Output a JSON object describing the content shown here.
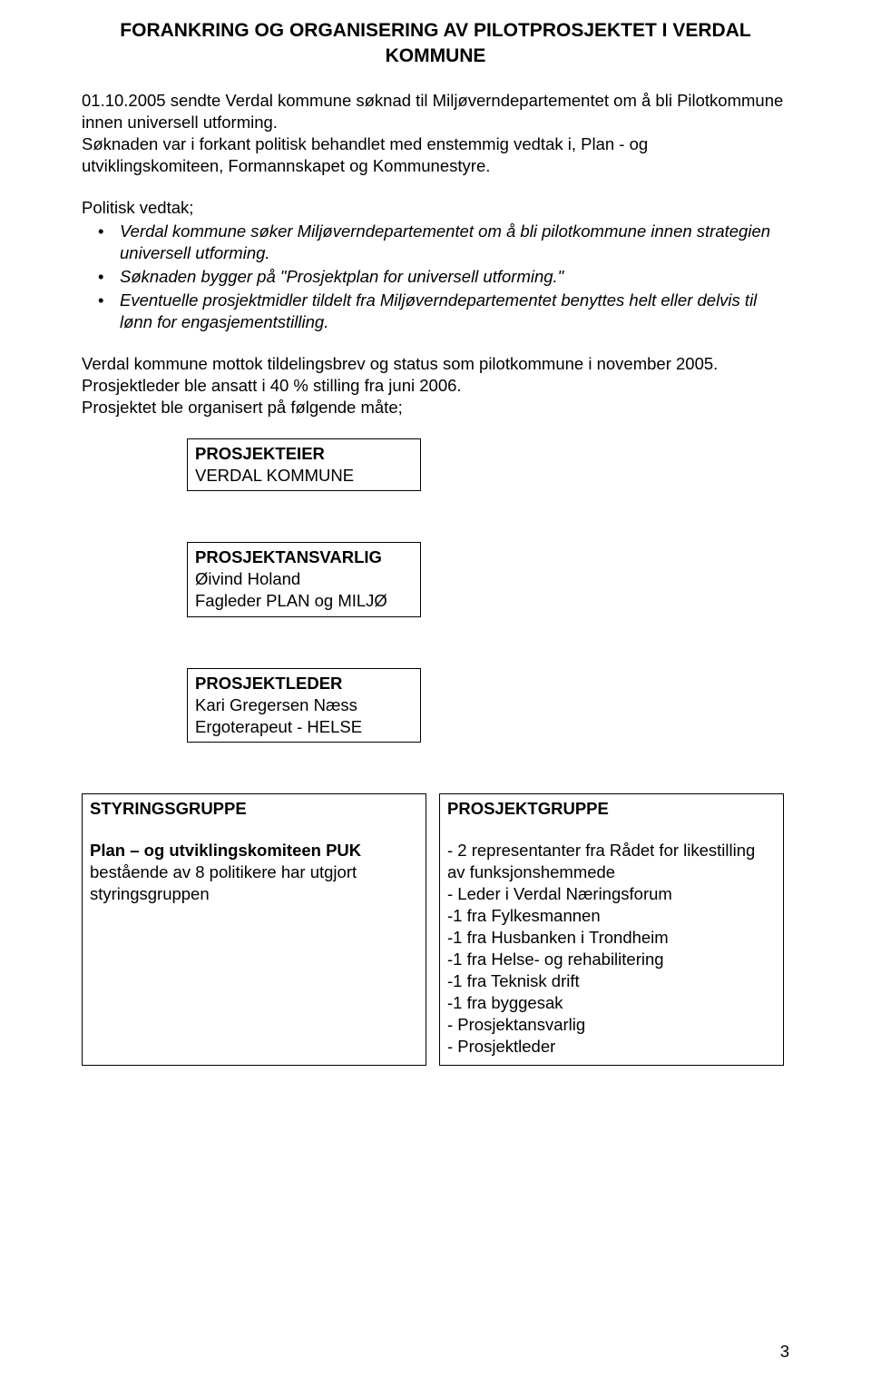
{
  "heading": "FORANKRING OG ORGANISERING AV PILOTPROSJEKTET I VERDAL KOMMUNE",
  "para1": "01.10.2005 sendte Verdal kommune søknad til Miljøverndepartementet om å bli Pilotkommune innen universell utforming.",
  "para2": "Søknaden var i forkant politisk behandlet med enstemmig vedtak i, Plan - og utviklingskomiteen, Formannskapet og Kommunestyre.",
  "vedtak_lead": "Politisk vedtak;",
  "vedtak_items": [
    "Verdal kommune søker Miljøverndepartementet om å bli pilotkommune innen strategien universell utforming.",
    "Søknaden bygger på \"Prosjektplan for universell utforming.\"",
    "Eventuelle prosjektmidler tildelt fra Miljøverndepartementet benyttes helt eller delvis til lønn for engasjementstilling."
  ],
  "para3a": "Verdal kommune mottok tildelingsbrev og status som pilotkommune i november 2005.",
  "para3b": "Prosjektleder ble ansatt i 40 % stilling fra juni 2006.",
  "para3c": "Prosjektet ble organisert på følgende måte;",
  "box_eier": {
    "label": "PROSJEKTEIER",
    "line1": "VERDAL KOMMUNE"
  },
  "box_ansvarlig": {
    "label": "PROSJEKTANSVARLIG",
    "line1": "Øivind Holand",
    "line2": "Fagleder PLAN og MILJØ"
  },
  "box_leder": {
    "label": "PROSJEKTLEDER",
    "line1": "Kari Gregersen Næss",
    "line2": "Ergoterapeut - HELSE"
  },
  "styring": {
    "label": "STYRINGSGRUPPE",
    "sub_bold": "Plan – og utviklingskomiteen PUK",
    "sub_text": "bestående av 8 politikere har utgjort styringsgruppen"
  },
  "gruppe": {
    "label": "PROSJEKTGRUPPE",
    "items": [
      "- 2 representanter fra Rådet for likestilling av funksjonshemmede",
      "- Leder i Verdal Næringsforum",
      "-1 fra Fylkesmannen",
      "-1 fra Husbanken i Trondheim",
      "-1 fra Helse- og rehabilitering",
      "-1 fra Teknisk drift",
      "-1 fra byggesak",
      "- Prosjektansvarlig",
      "- Prosjektleder"
    ]
  },
  "page_number": "3"
}
